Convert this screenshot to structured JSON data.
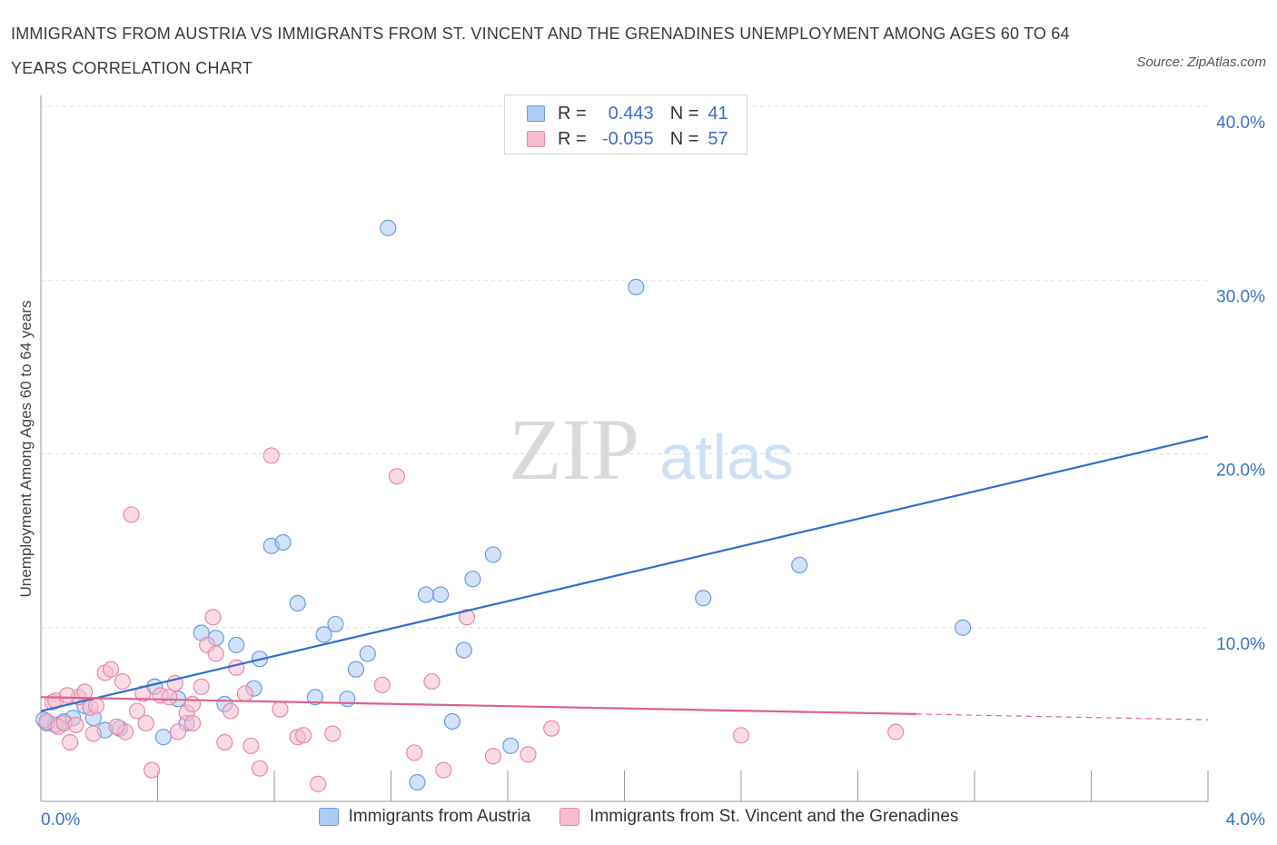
{
  "title": "IMMIGRANTS FROM AUSTRIA VS IMMIGRANTS FROM ST. VINCENT AND THE GRENADINES UNEMPLOYMENT AMONG AGES 60 TO 64 YEARS CORRELATION CHART",
  "source": "Source: ZipAtlas.com",
  "watermark": {
    "zip": "ZIP",
    "atlas": "atlas"
  },
  "legend_top": {
    "rows": [
      {
        "r_label": "R =",
        "r_value": "0.443",
        "n_label": "N =",
        "n_value": "41"
      },
      {
        "r_label": "R =",
        "r_value": "-0.055",
        "n_label": "N =",
        "n_value": "57"
      }
    ]
  },
  "colors": {
    "blue_fill": "#aecbf3",
    "blue_stroke": "#6d9be0",
    "blue_line": "#2f6fd0",
    "pink_fill": "#f6bccd",
    "pink_stroke": "#e889a8",
    "pink_line": "#e0608e",
    "grid": "#dcdcdc",
    "axis_text": "#3a70c8"
  },
  "chart_data": {
    "type": "scatter",
    "ylabel": "Unemployment Among Ages 60 to 64 years",
    "xlim": [
      0,
      4.0
    ],
    "ylim": [
      0,
      40
    ],
    "x_tick_labels": [
      "0.0%",
      "4.0%"
    ],
    "y_tick_labels": [
      "10.0%",
      "20.0%",
      "30.0%",
      "40.0%"
    ],
    "y_ticks": [
      10,
      20,
      30,
      40
    ],
    "grid": "horizontal dashed",
    "series": [
      {
        "name": "Immigrants from Austria",
        "color": "blue",
        "trend": {
          "x": [
            0.0,
            4.0
          ],
          "y": [
            5.2,
            21.0
          ],
          "dashed_from": null
        },
        "points": [
          [
            0.02,
            4.5
          ],
          [
            0.05,
            4.4
          ],
          [
            0.08,
            4.6
          ],
          [
            0.11,
            4.8
          ],
          [
            0.15,
            5.5
          ],
          [
            0.18,
            4.8
          ],
          [
            0.22,
            4.1
          ],
          [
            0.27,
            4.2
          ],
          [
            0.39,
            6.6
          ],
          [
            0.42,
            3.7
          ],
          [
            0.47,
            5.9
          ],
          [
            0.5,
            4.5
          ],
          [
            0.55,
            9.7
          ],
          [
            0.6,
            9.4
          ],
          [
            0.63,
            5.6
          ],
          [
            0.67,
            9.0
          ],
          [
            0.73,
            6.5
          ],
          [
            0.75,
            8.2
          ],
          [
            0.79,
            14.7
          ],
          [
            0.83,
            14.9
          ],
          [
            0.88,
            11.4
          ],
          [
            0.94,
            6.0
          ],
          [
            0.97,
            9.6
          ],
          [
            1.01,
            10.2
          ],
          [
            1.05,
            5.9
          ],
          [
            1.08,
            7.6
          ],
          [
            1.12,
            8.5
          ],
          [
            1.19,
            33.0
          ],
          [
            1.29,
            1.1
          ],
          [
            1.32,
            11.9
          ],
          [
            1.37,
            11.9
          ],
          [
            1.41,
            4.6
          ],
          [
            1.45,
            8.7
          ],
          [
            1.48,
            12.8
          ],
          [
            1.55,
            14.2
          ],
          [
            1.61,
            3.2
          ],
          [
            2.04,
            29.6
          ],
          [
            2.27,
            11.7
          ],
          [
            2.6,
            13.6
          ],
          [
            3.16,
            10.0
          ],
          [
            0.01,
            4.7
          ]
        ]
      },
      {
        "name": "Immigrants from St. Vincent and the Grenadines",
        "color": "pink",
        "trend": {
          "x": [
            0.0,
            4.0
          ],
          "y": [
            6.0,
            4.7
          ],
          "dashed_from": 3.0
        },
        "points": [
          [
            0.02,
            4.6
          ],
          [
            0.04,
            5.7
          ],
          [
            0.06,
            4.3
          ],
          [
            0.08,
            4.5
          ],
          [
            0.1,
            3.4
          ],
          [
            0.13,
            6.0
          ],
          [
            0.15,
            6.3
          ],
          [
            0.17,
            5.4
          ],
          [
            0.19,
            5.5
          ],
          [
            0.22,
            7.4
          ],
          [
            0.24,
            7.6
          ],
          [
            0.28,
            6.9
          ],
          [
            0.29,
            4.0
          ],
          [
            0.31,
            16.5
          ],
          [
            0.33,
            5.2
          ],
          [
            0.36,
            4.5
          ],
          [
            0.38,
            1.8
          ],
          [
            0.41,
            6.1
          ],
          [
            0.44,
            6.0
          ],
          [
            0.46,
            6.8
          ],
          [
            0.5,
            5.1
          ],
          [
            0.52,
            4.5
          ],
          [
            0.55,
            6.6
          ],
          [
            0.57,
            9.0
          ],
          [
            0.59,
            10.6
          ],
          [
            0.6,
            8.5
          ],
          [
            0.63,
            3.4
          ],
          [
            0.65,
            5.2
          ],
          [
            0.67,
            7.7
          ],
          [
            0.7,
            6.2
          ],
          [
            0.72,
            3.2
          ],
          [
            0.75,
            1.9
          ],
          [
            0.79,
            19.9
          ],
          [
            0.82,
            5.3
          ],
          [
            0.88,
            3.7
          ],
          [
            0.9,
            3.8
          ],
          [
            0.95,
            1.0
          ],
          [
            1.0,
            3.9
          ],
          [
            1.17,
            6.7
          ],
          [
            1.22,
            18.7
          ],
          [
            1.28,
            2.8
          ],
          [
            1.34,
            6.9
          ],
          [
            1.38,
            1.8
          ],
          [
            1.46,
            10.6
          ],
          [
            1.55,
            2.6
          ],
          [
            1.67,
            2.7
          ],
          [
            1.75,
            4.2
          ],
          [
            2.4,
            3.8
          ],
          [
            2.93,
            4.0
          ],
          [
            0.05,
            5.8
          ],
          [
            0.12,
            4.4
          ],
          [
            0.18,
            3.9
          ],
          [
            0.26,
            4.3
          ],
          [
            0.35,
            6.2
          ],
          [
            0.47,
            4.0
          ],
          [
            0.52,
            5.6
          ],
          [
            0.09,
            6.1
          ]
        ]
      }
    ]
  },
  "legend_bottom": [
    {
      "label": "Immigrants from Austria",
      "color": "blue"
    },
    {
      "label": "Immigrants from St. Vincent and the Grenadines",
      "color": "pink"
    }
  ]
}
